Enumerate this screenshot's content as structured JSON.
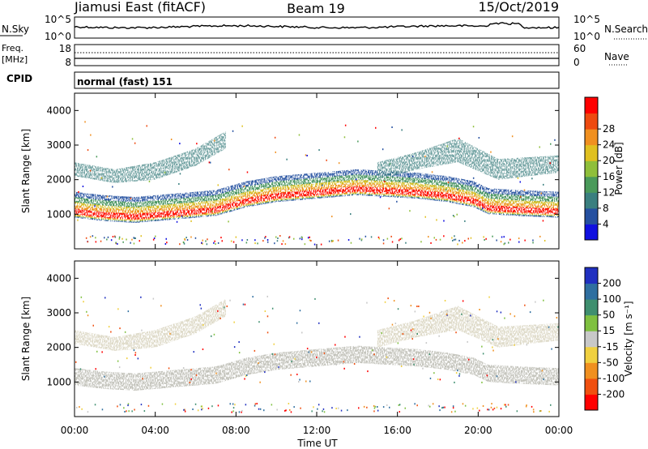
{
  "header": {
    "radar": "Jiamusi East (fitACF)",
    "beam": "Beam 19",
    "date": "15/Oct/2019"
  },
  "nsky_panel": {
    "left_label": "N.Sky",
    "left_ticks": [
      "10^5",
      "10^0"
    ],
    "right_ticks": [
      "10^5",
      "10^0"
    ],
    "right_label": "N.Search"
  },
  "freq_panel": {
    "left_label_1": "Freq.",
    "left_label_2": "[MHz]",
    "left_ticks": [
      "18",
      "8"
    ],
    "right_ticks": [
      "60",
      "0"
    ],
    "right_label": "Nave"
  },
  "cpid": {
    "label": "CPID",
    "value": "normal (fast) 151"
  },
  "chart_data": [
    {
      "type": "heatmap",
      "quantity": "power",
      "ylabel": "Slant Range [km]",
      "ylim": [
        0,
        4500
      ],
      "yticks": [
        "1000",
        "2000",
        "3000",
        "4000"
      ],
      "colorbar_label": "Power [dB]",
      "colorbar_ticks": [
        "4",
        "8",
        "12",
        "16",
        "20",
        "24",
        "28"
      ],
      "colorbar_colors": [
        "#1010e0",
        "#2550a0",
        "#3a7f7f",
        "#4a9a5a",
        "#8fbf3a",
        "#e0c020",
        "#f09020",
        "#ee4a10",
        "#ff0000"
      ],
      "approx_echo_bands": [
        {
          "t_start_h": 0.0,
          "t_end_h": 7.5,
          "range_km": [
            950,
            1350
          ],
          "power_db": 22
        },
        {
          "t_start_h": 7.5,
          "t_end_h": 12.5,
          "range_km": [
            1500,
            1850
          ],
          "power_db": 16
        },
        {
          "t_start_h": 15.0,
          "t_end_h": 20.0,
          "range_km": [
            1600,
            2100
          ],
          "power_db": 20
        },
        {
          "t_start_h": 4.5,
          "t_end_h": 8.0,
          "range_km": [
            2500,
            3000
          ],
          "power_db": 14
        }
      ]
    },
    {
      "type": "heatmap",
      "quantity": "velocity",
      "ylabel": "Slant Range [km]",
      "ylim": [
        0,
        4500
      ],
      "yticks": [
        "1000",
        "2000",
        "3000",
        "4000"
      ],
      "xlabel": "Time UT",
      "xticks": [
        "00:00",
        "04:00",
        "08:00",
        "12:00",
        "16:00",
        "20:00",
        "00:00"
      ],
      "colorbar_label": "Velocity [m s⁻¹]",
      "colorbar_ticks": [
        "200",
        "100",
        "50",
        "15",
        "-15",
        "-50",
        "-100",
        "-200"
      ],
      "colorbar_colors": [
        "#2030c0",
        "#2f6fa0",
        "#3f8f6f",
        "#7fc040",
        "#c8c8c8",
        "#f0d040",
        "#f09020",
        "#f05010",
        "#ff0000"
      ]
    }
  ]
}
